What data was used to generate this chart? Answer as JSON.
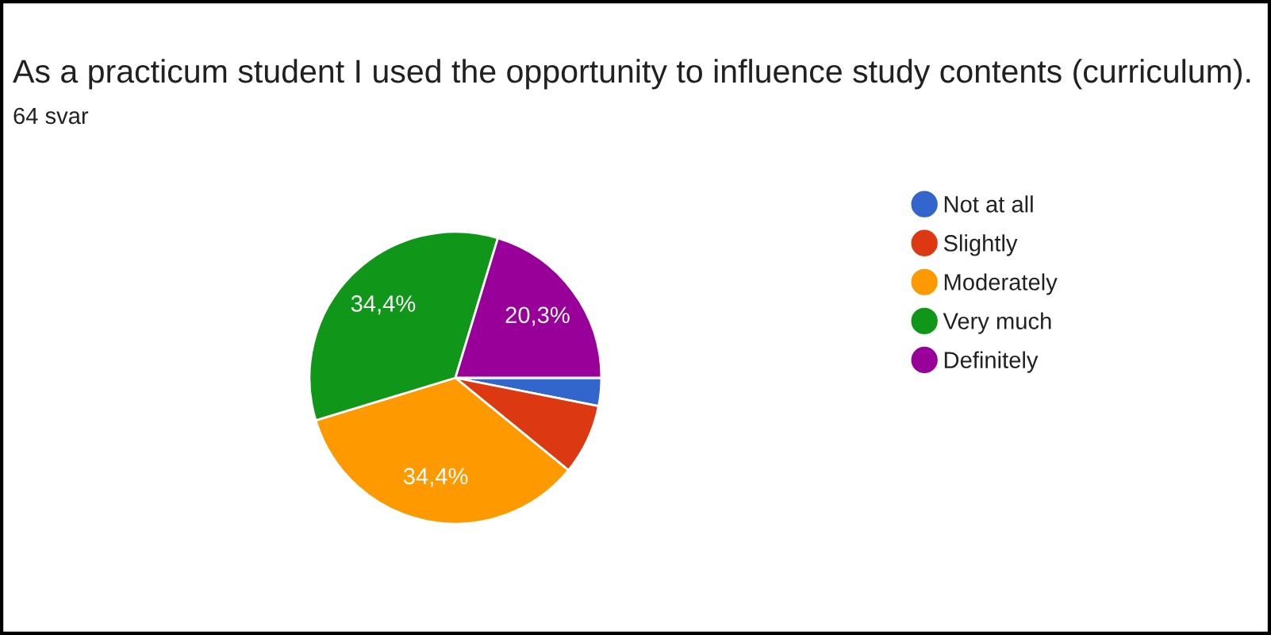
{
  "chart_data": {
    "type": "pie",
    "title": "As a practicum student I used the opportunity to influence study contents (curriculum).",
    "subtitle": "64 svar",
    "categories": [
      "Not at all",
      "Slightly",
      "Moderately",
      "Very much",
      "Definitely"
    ],
    "values": [
      3.1,
      7.8,
      34.4,
      34.4,
      20.3
    ],
    "colors": [
      "#3366cc",
      "#dc3912",
      "#ff9900",
      "#109618",
      "#990099"
    ],
    "value_labels": [
      null,
      null,
      "34,4%",
      "34,4%",
      "20,3%"
    ],
    "legend": "right"
  }
}
